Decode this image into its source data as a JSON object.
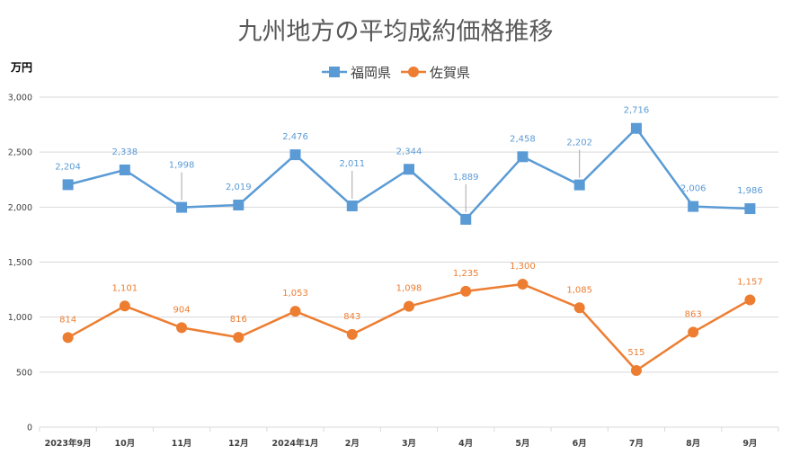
{
  "chart_data": {
    "type": "line",
    "title": "九州地方の平均成約価格推移",
    "ylabel": "万円",
    "xlabel": "",
    "categories": [
      "2023年9月",
      "10月",
      "11月",
      "12月",
      "2024年1月",
      "2月",
      "3月",
      "4月",
      "5月",
      "6月",
      "7月",
      "8月",
      "9月"
    ],
    "ylim": [
      0,
      3000
    ],
    "yticks": [
      0,
      500,
      1000,
      1500,
      2000,
      2500,
      3000
    ],
    "ytick_labels": [
      "0",
      "500",
      "1,000",
      "1,500",
      "2,000",
      "2,500",
      "3,000"
    ],
    "grid": "horizontal",
    "legend_position": "top",
    "series": [
      {
        "name": "福岡県",
        "color": "#5b9bd5",
        "marker": "square",
        "values": [
          2204,
          2338,
          1998,
          2019,
          2476,
          2011,
          2344,
          1889,
          2458,
          2202,
          2716,
          2006,
          1986
        ],
        "labels": [
          "2,204",
          "2,338",
          "1,998",
          "2,019",
          "2,476",
          "2,011",
          "2,344",
          "1,889",
          "2,458",
          "2,202",
          "2,716",
          "2,006",
          "1,986"
        ]
      },
      {
        "name": "佐賀県",
        "color": "#ed7d31",
        "marker": "circle",
        "values": [
          814,
          1101,
          904,
          816,
          1053,
          843,
          1098,
          1235,
          1300,
          1085,
          515,
          863,
          1157
        ],
        "labels": [
          "814",
          "1,101",
          "904",
          "816",
          "1,053",
          "843",
          "1,098",
          "1,235",
          "1,300",
          "1,085",
          "515",
          "863",
          "1,157"
        ]
      }
    ]
  }
}
